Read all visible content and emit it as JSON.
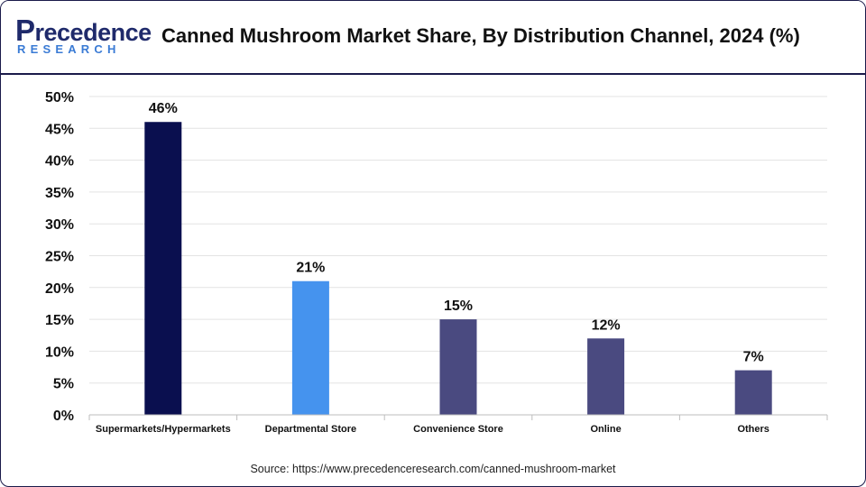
{
  "header": {
    "logo_main_initial": "P",
    "logo_main_rest": "recedence",
    "logo_sub": "RESEARCH",
    "title": "Canned Mushroom Market Share, By Distribution Channel, 2024 (%)"
  },
  "colors": {
    "brand_dark": "#1f2a6b",
    "brand_light": "#3a7bd5"
  },
  "chart_data": {
    "type": "bar",
    "title": "Canned Mushroom Market Share, By Distribution Channel, 2024 (%)",
    "categories": [
      "Supermarkets/Hypermarkets",
      "Departmental Store",
      "Convenience Store",
      "Online",
      "Others"
    ],
    "values": [
      46,
      21,
      15,
      12,
      7
    ],
    "data_labels": [
      "46%",
      "21%",
      "15%",
      "12%",
      "7%"
    ],
    "bar_colors": [
      "#0a0f4f",
      "#4593ee",
      "#4a4a80",
      "#4a4a80",
      "#4a4a80"
    ],
    "ylim": [
      0,
      50
    ],
    "yticks": [
      0,
      5,
      10,
      15,
      20,
      25,
      30,
      35,
      40,
      45,
      50
    ],
    "ytick_labels": [
      "0%",
      "5%",
      "10%",
      "15%",
      "20%",
      "25%",
      "30%",
      "35%",
      "40%",
      "45%",
      "50%"
    ],
    "xlabel": "",
    "ylabel": "",
    "grid": true,
    "legend": "none"
  },
  "footer": {
    "source": "Source: https://www.precedenceresearch.com/canned-mushroom-market"
  }
}
